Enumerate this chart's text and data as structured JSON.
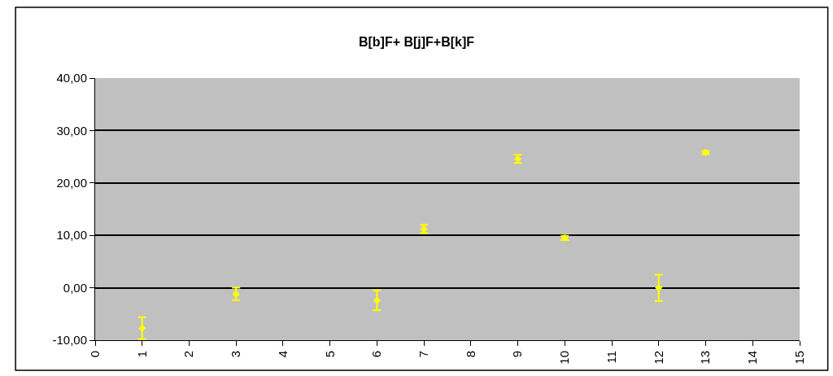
{
  "chart_data": {
    "type": "scatter",
    "title": "B[b]F+ B[j]F+B[k]F",
    "x": [
      1,
      3,
      6,
      7,
      9,
      10,
      12,
      13
    ],
    "values": [
      -7.7,
      -1.2,
      -2.4,
      11.2,
      24.6,
      9.5,
      0.0,
      25.8
    ],
    "errors": [
      2.1,
      1.2,
      1.9,
      0.8,
      0.8,
      0.4,
      2.5,
      0.3
    ],
    "color": "#ffff00",
    "marker": "diamond",
    "grid": "y",
    "legend": false,
    "xlim": [
      0,
      15
    ],
    "xticks": [
      0,
      1,
      2,
      3,
      4,
      5,
      6,
      7,
      8,
      9,
      10,
      11,
      12,
      13,
      14,
      15
    ],
    "ylim": [
      -10,
      40
    ],
    "yticks": [
      {
        "value": -10,
        "label": "-10,00"
      },
      {
        "value": 0,
        "label": "0,00"
      },
      {
        "value": 10,
        "label": "10,00"
      },
      {
        "value": 20,
        "label": "20,00"
      },
      {
        "value": 30,
        "label": "30,00"
      },
      {
        "value": 40,
        "label": "40,00"
      }
    ]
  }
}
